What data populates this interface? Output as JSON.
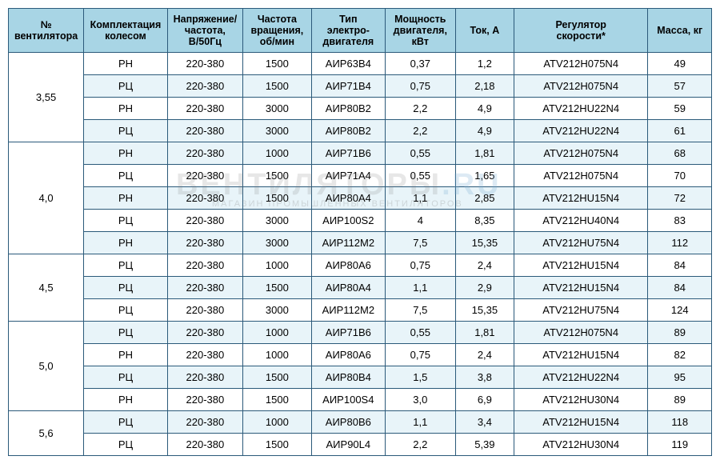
{
  "headers": [
    "№\nвентилятора",
    "Комплектация\nколесом",
    "Напряжение/\nчастота,\nВ/50Гц",
    "Частота\nвращения,\nоб/мин",
    "Тип\nэлектро-\nдвигателя",
    "Мощность\nдвигателя,\nкВт",
    "Ток, А",
    "Регулятор\nскорости*",
    "Масса, кг"
  ],
  "groups": [
    {
      "label": "3,55",
      "rows": [
        {
          "cells": [
            "РН",
            "220-380",
            "1500",
            "АИР63В4",
            "0,37",
            "1,2",
            "ATV212H075N4",
            "49"
          ],
          "alt": false
        },
        {
          "cells": [
            "РЦ",
            "220-380",
            "1500",
            "АИР71В4",
            "0,75",
            "2,18",
            "ATV212H075N4",
            "57"
          ],
          "alt": true
        },
        {
          "cells": [
            "РН",
            "220-380",
            "3000",
            "АИР80В2",
            "2,2",
            "4,9",
            "ATV212HU22N4",
            "59"
          ],
          "alt": false
        },
        {
          "cells": [
            "РЦ",
            "220-380",
            "3000",
            "АИР80В2",
            "2,2",
            "4,9",
            "ATV212HU22N4",
            "61"
          ],
          "alt": true
        }
      ]
    },
    {
      "label": "4,0",
      "rows": [
        {
          "cells": [
            "РН",
            "220-380",
            "1000",
            "АИР71В6",
            "0,55",
            "1,81",
            "ATV212H075N4",
            "68"
          ],
          "alt": true
        },
        {
          "cells": [
            "РЦ",
            "220-380",
            "1500",
            "АИР71А4",
            "0,55",
            "1,65",
            "ATV212H075N4",
            "70"
          ],
          "alt": false
        },
        {
          "cells": [
            "РН",
            "220-380",
            "1500",
            "АИР80А4",
            "1,1",
            "2,85",
            "ATV212HU15N4",
            "72"
          ],
          "alt": true
        },
        {
          "cells": [
            "РЦ",
            "220-380",
            "3000",
            "АИР100S2",
            "4",
            "8,35",
            "ATV212HU40N4",
            "83"
          ],
          "alt": false
        },
        {
          "cells": [
            "РН",
            "220-380",
            "3000",
            "АИР112М2",
            "7,5",
            "15,35",
            "ATV212HU75N4",
            "112"
          ],
          "alt": true
        }
      ]
    },
    {
      "label": "4,5",
      "rows": [
        {
          "cells": [
            "РЦ",
            "220-380",
            "1000",
            "АИР80А6",
            "0,75",
            "2,4",
            "ATV212HU15N4",
            "84"
          ],
          "alt": false
        },
        {
          "cells": [
            "РЦ",
            "220-380",
            "1500",
            "АИР80А4",
            "1,1",
            "2,9",
            "ATV212HU15N4",
            "84"
          ],
          "alt": true
        },
        {
          "cells": [
            "РЦ",
            "220-380",
            "3000",
            "АИР112М2",
            "7,5",
            "15,35",
            "ATV212HU75N4",
            "124"
          ],
          "alt": false
        }
      ]
    },
    {
      "label": "5,0",
      "rows": [
        {
          "cells": [
            "РЦ",
            "220-380",
            "1000",
            "АИР71В6",
            "0,55",
            "1,81",
            "ATV212H075N4",
            "89"
          ],
          "alt": true
        },
        {
          "cells": [
            "РН",
            "220-380",
            "1000",
            "АИР80А6",
            "0,75",
            "2,4",
            "ATV212HU15N4",
            "82"
          ],
          "alt": false
        },
        {
          "cells": [
            "РЦ",
            "220-380",
            "1500",
            "АИР80В4",
            "1,5",
            "3,8",
            "ATV212HU22N4",
            "95"
          ],
          "alt": true
        },
        {
          "cells": [
            "РН",
            "220-380",
            "1500",
            "АИР100S4",
            "3,0",
            "6,9",
            "ATV212HU30N4",
            "89"
          ],
          "alt": false
        }
      ]
    },
    {
      "label": "5,6",
      "rows": [
        {
          "cells": [
            "РЦ",
            "220-380",
            "1000",
            "АИР80В6",
            "1,1",
            "3,4",
            "ATV212HU15N4",
            "118"
          ],
          "alt": true
        },
        {
          "cells": [
            "РЦ",
            "220-380",
            "1500",
            "АИР90L4",
            "2,2",
            "5,39",
            "ATV212HU30N4",
            "119"
          ],
          "alt": false
        }
      ]
    }
  ],
  "watermark": {
    "t1": "ВЕНТИЛЯТОРЫ",
    "t2": ".RU",
    "sub": "МАГАЗИН ПРОМЫШЛЕННЫХ ВЕНТИЛЯТОРОВ"
  },
  "colors": {
    "border": "#2b5a7a",
    "header_bg": "#a8d5e5",
    "alt_bg": "#e8f4f9",
    "bg": "#ffffff"
  }
}
